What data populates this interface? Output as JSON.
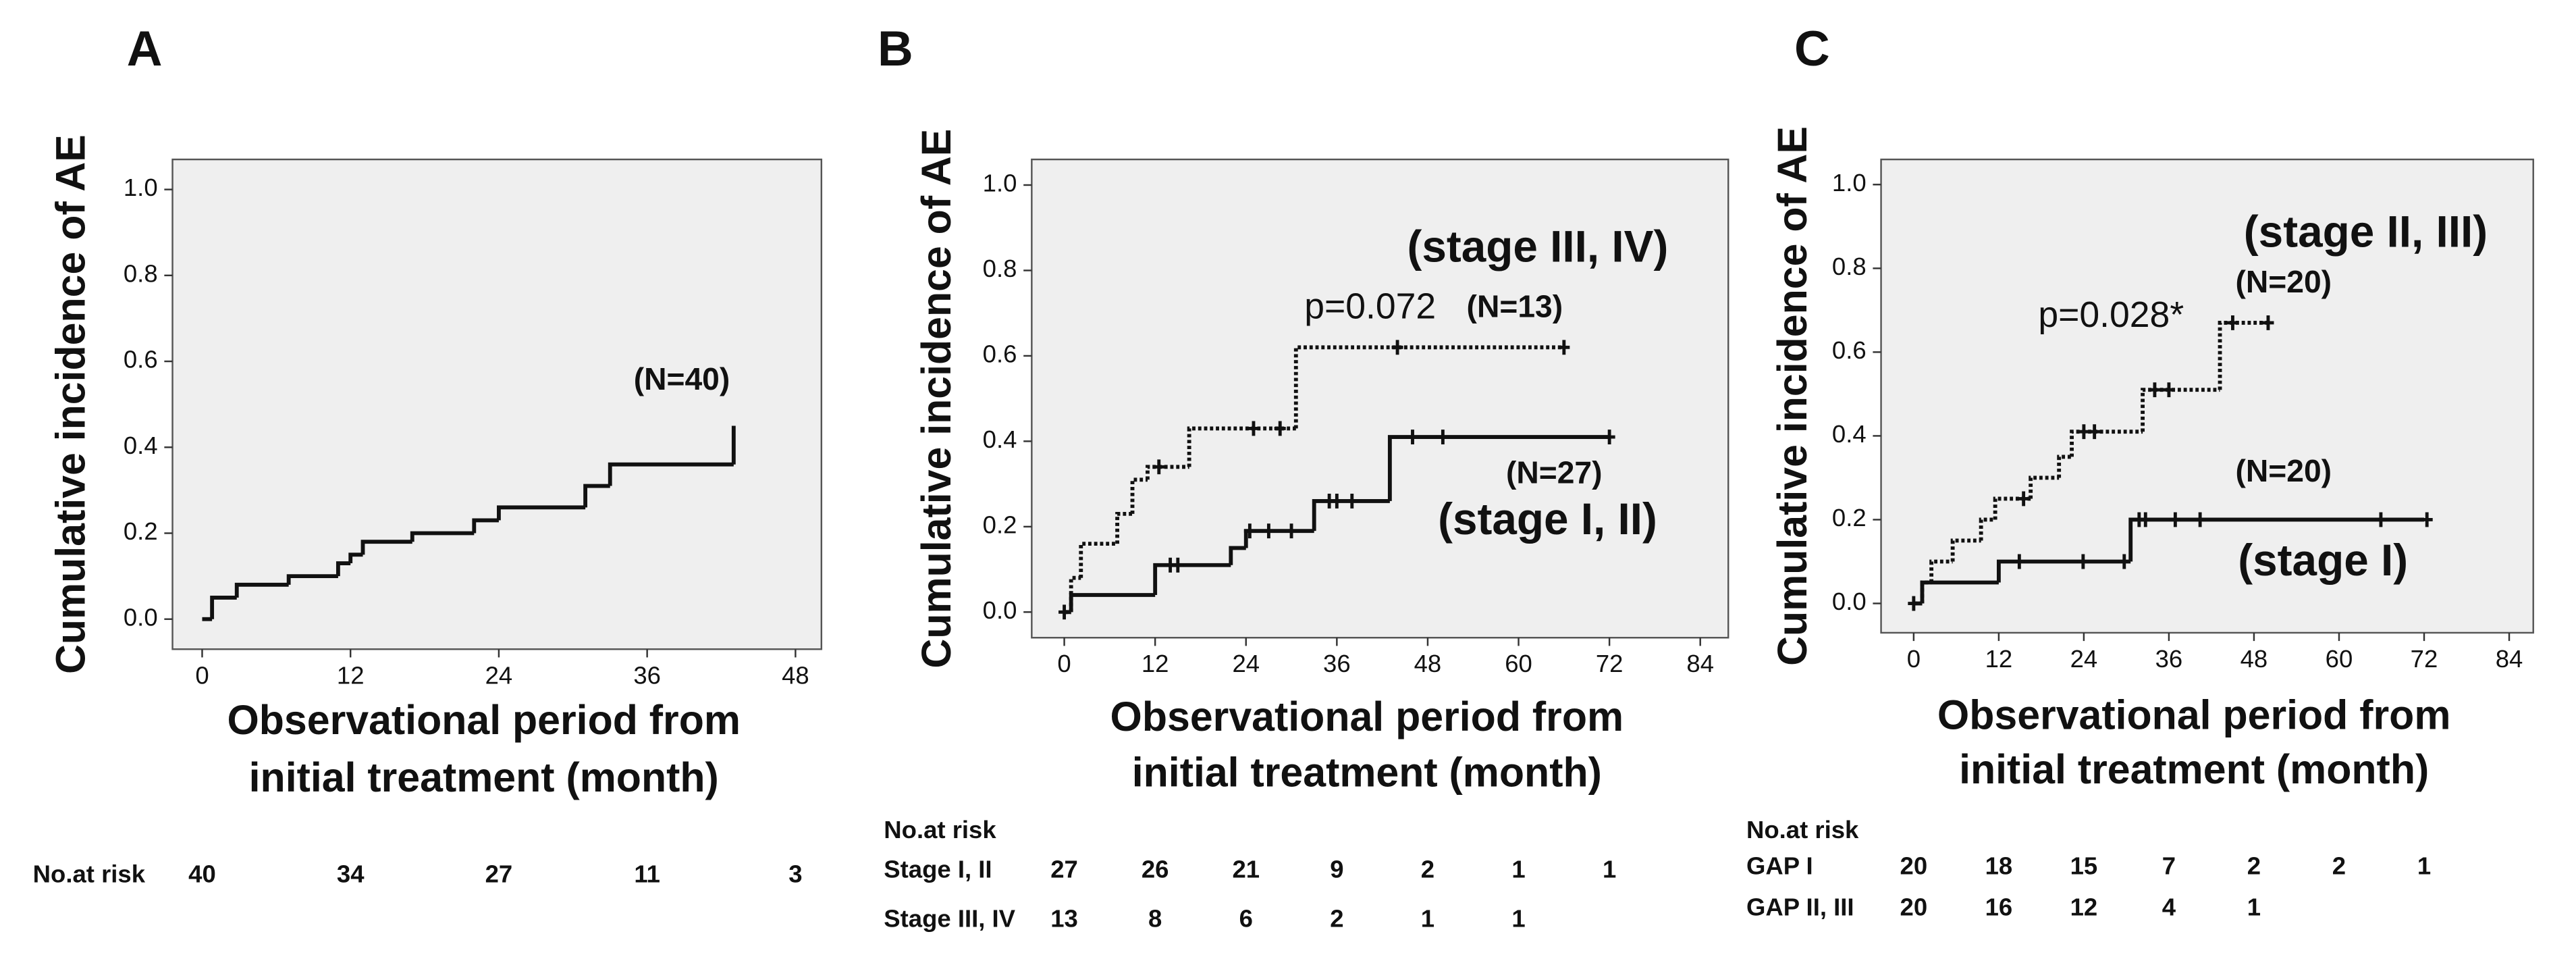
{
  "chart_data": [
    {
      "type": "step",
      "title": "A",
      "ylabel": "Cumulative incidence of AE",
      "xlabel": [
        "Observational period from",
        "initial treatment (month)"
      ],
      "xlim": [
        -2.4,
        50.1
      ],
      "ylim": [
        -0.07,
        1.07
      ],
      "xticks": [
        0,
        12,
        24,
        36,
        48
      ],
      "yticks": [
        {
          "value": 0,
          "label": "0.0"
        },
        {
          "value": 0.2,
          "label": "0.2"
        },
        {
          "value": 0.4,
          "label": "0.4"
        },
        {
          "value": 0.6,
          "label": "0.6"
        },
        {
          "value": 0.8,
          "label": "0.8"
        },
        {
          "value": 1,
          "label": "1.0"
        }
      ],
      "series": [
        {
          "style": "solid",
          "color": "#111111",
          "x": [
            0,
            0.8,
            2.8,
            7,
            11,
            12,
            13,
            17,
            22,
            24,
            31,
            33,
            43
          ],
          "values": [
            0,
            0.05,
            0.08,
            0.1,
            0.13,
            0.15,
            0.18,
            0.2,
            0.23,
            0.26,
            0.31,
            0.36,
            0.45
          ]
        }
      ],
      "annotations": [
        "(N=40)"
      ],
      "risk_table": {
        "label": "No.at risk",
        "rows": [
          {
            "values": [
              40,
              34,
              27,
              11,
              3
            ]
          }
        ]
      }
    },
    {
      "type": "step",
      "title": "B",
      "ylabel": "Cumulative incidence of AE",
      "xlabel": [
        "Observational period from",
        "initial treatment (month)"
      ],
      "xlim": [
        -4.3,
        87.7
      ],
      "ylim": [
        -0.06,
        1.06
      ],
      "xticks": [
        0,
        12,
        24,
        36,
        48,
        60,
        72,
        84
      ],
      "yticks": [
        {
          "value": 0,
          "label": "0.0"
        },
        {
          "value": 0.2,
          "label": "0.2"
        },
        {
          "value": 0.4,
          "label": "0.4"
        },
        {
          "value": 0.6,
          "label": "0.6"
        },
        {
          "value": 0.8,
          "label": "0.8"
        },
        {
          "value": 1,
          "label": "1.0"
        }
      ],
      "series": [
        {
          "style": "solid",
          "color": "#111111",
          "x": [
            0,
            0.9,
            12,
            22,
            24,
            33,
            43,
            72
          ],
          "values": [
            0,
            0.04,
            0.11,
            0.15,
            0.19,
            0.26,
            0.41,
            0.41
          ],
          "censored": {
            "x": [
              0,
              14,
              15,
              24.5,
              27,
              30,
              35,
              36,
              38,
              46,
              50,
              72
            ],
            "values": [
              0,
              0.11,
              0.11,
              0.19,
              0.19,
              0.19,
              0.26,
              0.26,
              0.26,
              0.41,
              0.41,
              0.41
            ]
          }
        },
        {
          "style": "dotted",
          "color": "#111111",
          "x": [
            0,
            0.9,
            2.2,
            7,
            9,
            11,
            16.5,
            30.6,
            66
          ],
          "values": [
            0,
            0.08,
            0.16,
            0.23,
            0.31,
            0.34,
            0.43,
            0.62,
            0.62
          ],
          "censored": {
            "x": [
              12.5,
              25,
              28.5,
              44,
              66
            ],
            "values": [
              0.34,
              0.43,
              0.43,
              0.62,
              0.62
            ]
          }
        }
      ],
      "annotations": [
        "(stage III, IV)",
        "p=0.072",
        "(N=13)",
        "(N=27)",
        "(stage I, II)"
      ],
      "risk_table": {
        "label": "No.at risk",
        "rows": [
          {
            "name": "Stage I, II",
            "values": [
              27,
              26,
              21,
              9,
              2,
              1,
              1
            ]
          },
          {
            "name": "Stage III, IV",
            "values": [
              13,
              8,
              6,
              2,
              1,
              1
            ]
          }
        ]
      }
    },
    {
      "type": "step",
      "title": "C",
      "ylabel": "Cumulative incidence of AE",
      "xlabel": [
        "Observational period from",
        "initial treatment (month)"
      ],
      "xlim": [
        -4.6,
        87.4
      ],
      "ylim": [
        -0.07,
        1.06
      ],
      "xticks": [
        0,
        12,
        24,
        36,
        48,
        60,
        72,
        84
      ],
      "yticks": [
        {
          "value": 0,
          "label": "0.0"
        },
        {
          "value": 0.2,
          "label": "0.2"
        },
        {
          "value": 0.4,
          "label": "0.4"
        },
        {
          "value": 0.6,
          "label": "0.6"
        },
        {
          "value": 0.8,
          "label": "0.8"
        },
        {
          "value": 1,
          "label": "1.0"
        }
      ],
      "series": [
        {
          "style": "solid",
          "color": "#111111",
          "x": [
            0,
            1.2,
            12,
            30.6,
            72
          ],
          "values": [
            0,
            0.05,
            0.1,
            0.2,
            0.2
          ],
          "censored": {
            "x": [
              0,
              14.9,
              23.9,
              29.7,
              31.8,
              32.7,
              36.9,
              40.4,
              65.9,
              72.4
            ],
            "values": [
              0,
              0.1,
              0.1,
              0.1,
              0.2,
              0.2,
              0.2,
              0.2,
              0.2,
              0.2
            ]
          }
        },
        {
          "style": "dotted",
          "color": "#111111",
          "x": [
            0,
            1.2,
            2.5,
            5.5,
            9.5,
            11.5,
            16.5,
            20.5,
            22.3,
            32.3,
            43.2,
            50
          ],
          "values": [
            0,
            0.05,
            0.1,
            0.15,
            0.2,
            0.25,
            0.3,
            0.35,
            0.41,
            0.51,
            0.67,
            0.67
          ],
          "censored": {
            "x": [
              15.5,
              24,
              25.5,
              34,
              36,
              45,
              50
            ],
            "values": [
              0.25,
              0.41,
              0.41,
              0.51,
              0.51,
              0.67,
              0.67
            ]
          }
        }
      ],
      "annotations": [
        "(stage II, III)",
        "(N=20)",
        "p=0.028*",
        "(N=20)",
        "(stage I)"
      ],
      "risk_table": {
        "label": "No.at risk",
        "rows": [
          {
            "name": "GAP I",
            "values": [
              20,
              18,
              15,
              7,
              2,
              2,
              1
            ]
          },
          {
            "name": "GAP II, III",
            "values": [
              20,
              16,
              12,
              4,
              1
            ]
          }
        ]
      }
    }
  ]
}
